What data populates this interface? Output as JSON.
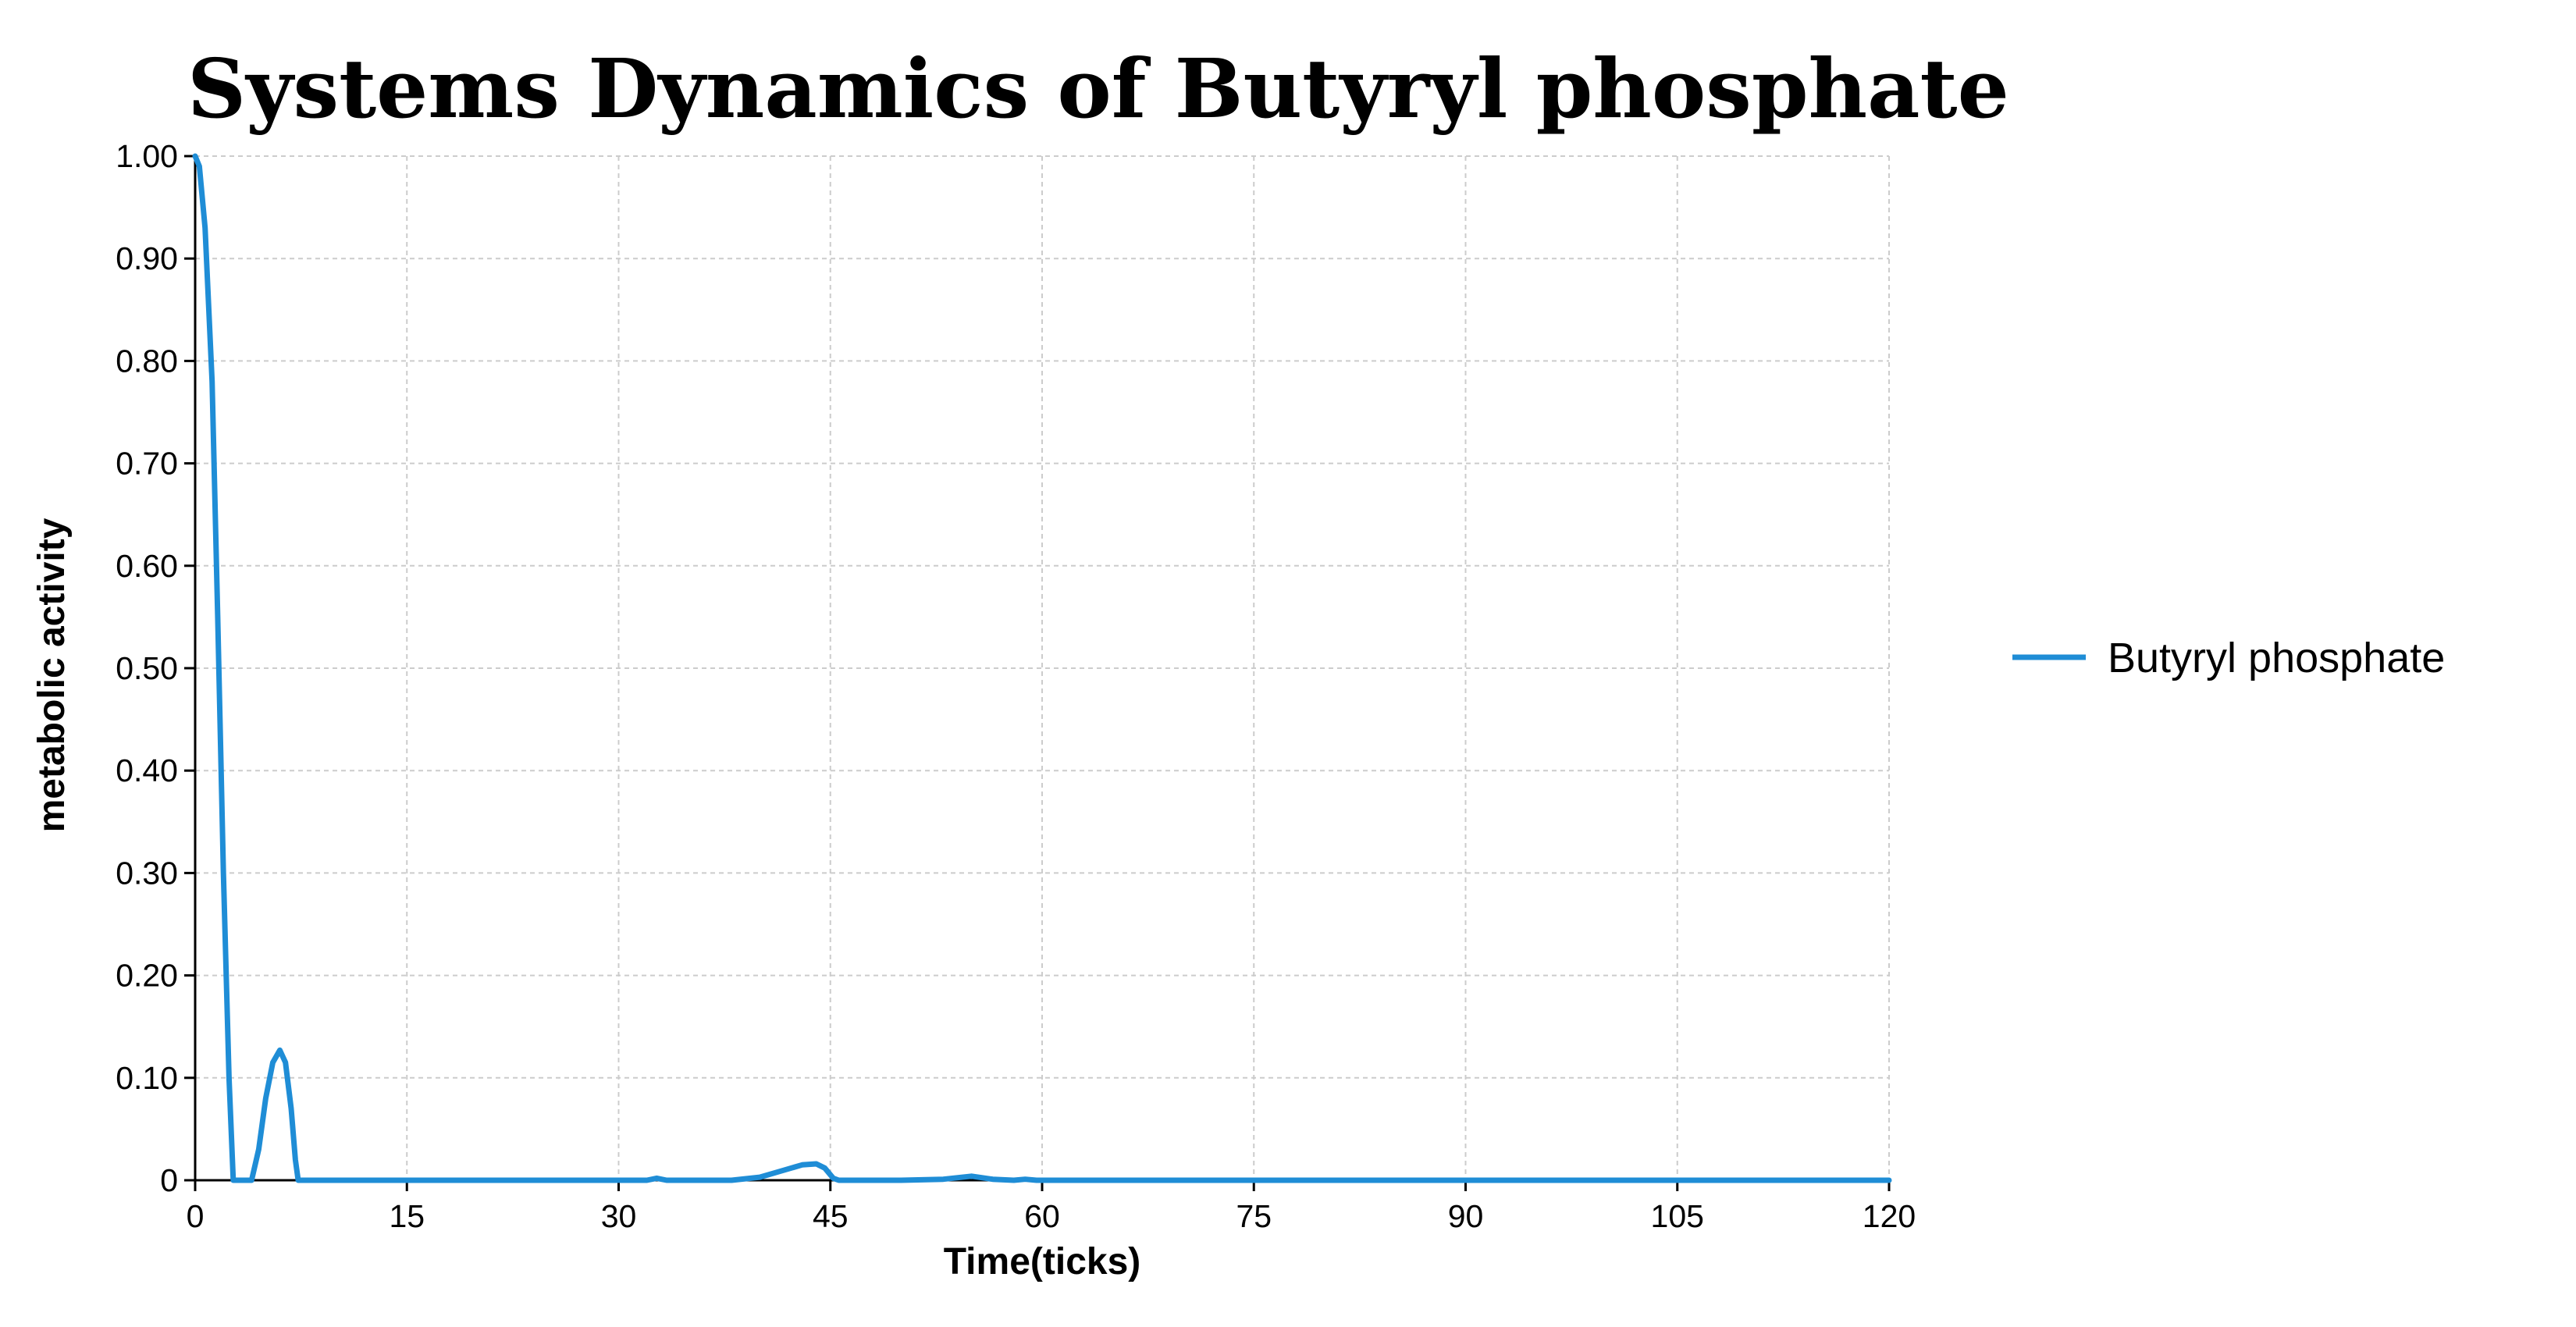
{
  "chart_data": {
    "type": "line",
    "title": "Systems Dynamics of Butyryl phosphate",
    "xlabel": "Time(ticks)",
    "ylabel": "metabolic activity",
    "xlim": [
      0,
      120
    ],
    "ylim": [
      0,
      1
    ],
    "x_ticks": [
      "0",
      "15",
      "30",
      "45",
      "60",
      "75",
      "90",
      "105",
      "120"
    ],
    "y_ticks": [
      "0",
      "0.10",
      "0.20",
      "0.30",
      "0.40",
      "0.50",
      "0.60",
      "0.70",
      "0.80",
      "0.90",
      "1.00"
    ],
    "grid": true,
    "legend_position": "right",
    "series": [
      {
        "name": "Butyryl phosphate",
        "color": "#1f8dd6",
        "points": [
          [
            0,
            1.0
          ],
          [
            0.3,
            0.99
          ],
          [
            0.7,
            0.93
          ],
          [
            1.2,
            0.78
          ],
          [
            1.6,
            0.55
          ],
          [
            2.0,
            0.3
          ],
          [
            2.4,
            0.1
          ],
          [
            2.7,
            0.0
          ],
          [
            3.0,
            0.0
          ],
          [
            4.0,
            0.0
          ],
          [
            4.5,
            0.03
          ],
          [
            5.0,
            0.08
          ],
          [
            5.5,
            0.115
          ],
          [
            6.0,
            0.127
          ],
          [
            6.4,
            0.115
          ],
          [
            6.8,
            0.07
          ],
          [
            7.1,
            0.02
          ],
          [
            7.3,
            0.0
          ],
          [
            10,
            0.0
          ],
          [
            20,
            0.0
          ],
          [
            30,
            0.0
          ],
          [
            32,
            0.0
          ],
          [
            32.7,
            0.002
          ],
          [
            33.4,
            0.0
          ],
          [
            38,
            0.0
          ],
          [
            40,
            0.003
          ],
          [
            41.5,
            0.009
          ],
          [
            43,
            0.015
          ],
          [
            44,
            0.016
          ],
          [
            44.6,
            0.012
          ],
          [
            45.2,
            0.002
          ],
          [
            45.6,
            0.0
          ],
          [
            50,
            0.0
          ],
          [
            53,
            0.001
          ],
          [
            55,
            0.004
          ],
          [
            56.5,
            0.001
          ],
          [
            58,
            0.0
          ],
          [
            58.8,
            0.001
          ],
          [
            59.6,
            0.0
          ],
          [
            70,
            0.0
          ],
          [
            80,
            0.0
          ],
          [
            90,
            0.0
          ],
          [
            100,
            0.0
          ],
          [
            110,
            0.0
          ],
          [
            120,
            0.0
          ]
        ]
      }
    ]
  }
}
